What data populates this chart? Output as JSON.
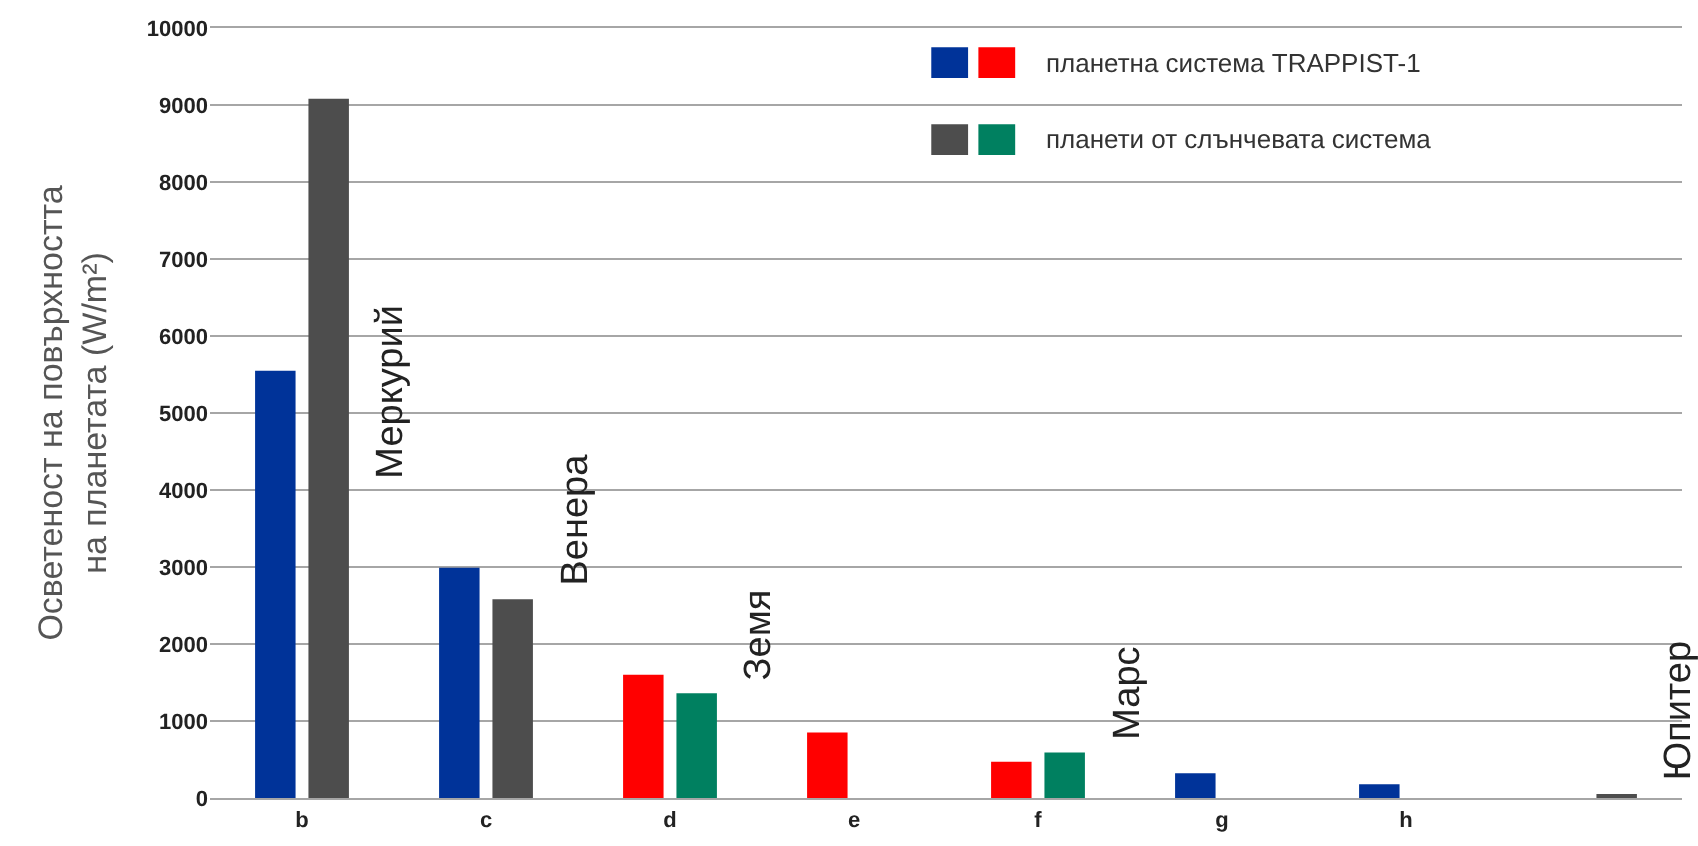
{
  "chart_data": {
    "type": "bar",
    "ylabel": "Осветеност на повърхността\nна планетата (W/m²)",
    "categories": [
      "b",
      "c",
      "d",
      "e",
      "f",
      "g",
      "h",
      null
    ],
    "series": [
      {
        "name": "планетна система TRAPPIST-1",
        "colors": [
          "#003399",
          "#003399",
          "#ff0000",
          "#ff0000",
          "#ff0000",
          "#003399",
          "#003399",
          "#003399"
        ],
        "values": [
          5550,
          2990,
          1600,
          850,
          470,
          320,
          180,
          null
        ]
      },
      {
        "name": "планети от слънчевата система",
        "colors": [
          "#4d4d4d",
          "#4d4d4d",
          "#008060",
          "#008060",
          "#008060",
          "#4d4d4d",
          "#4d4d4d",
          "#4d4d4d"
        ],
        "values": [
          9080,
          2580,
          1360,
          null,
          590,
          null,
          null,
          50
        ]
      }
    ],
    "annotations": [
      "Меркурий",
      "Венера",
      "Земя",
      "Марс",
      "Юпитер"
    ],
    "ylim": [
      0,
      10000
    ],
    "yticks": [
      0,
      1000,
      2000,
      3000,
      4000,
      5000,
      6000,
      7000,
      8000,
      9000,
      10000
    ],
    "grid": "y",
    "legend": "top right"
  }
}
